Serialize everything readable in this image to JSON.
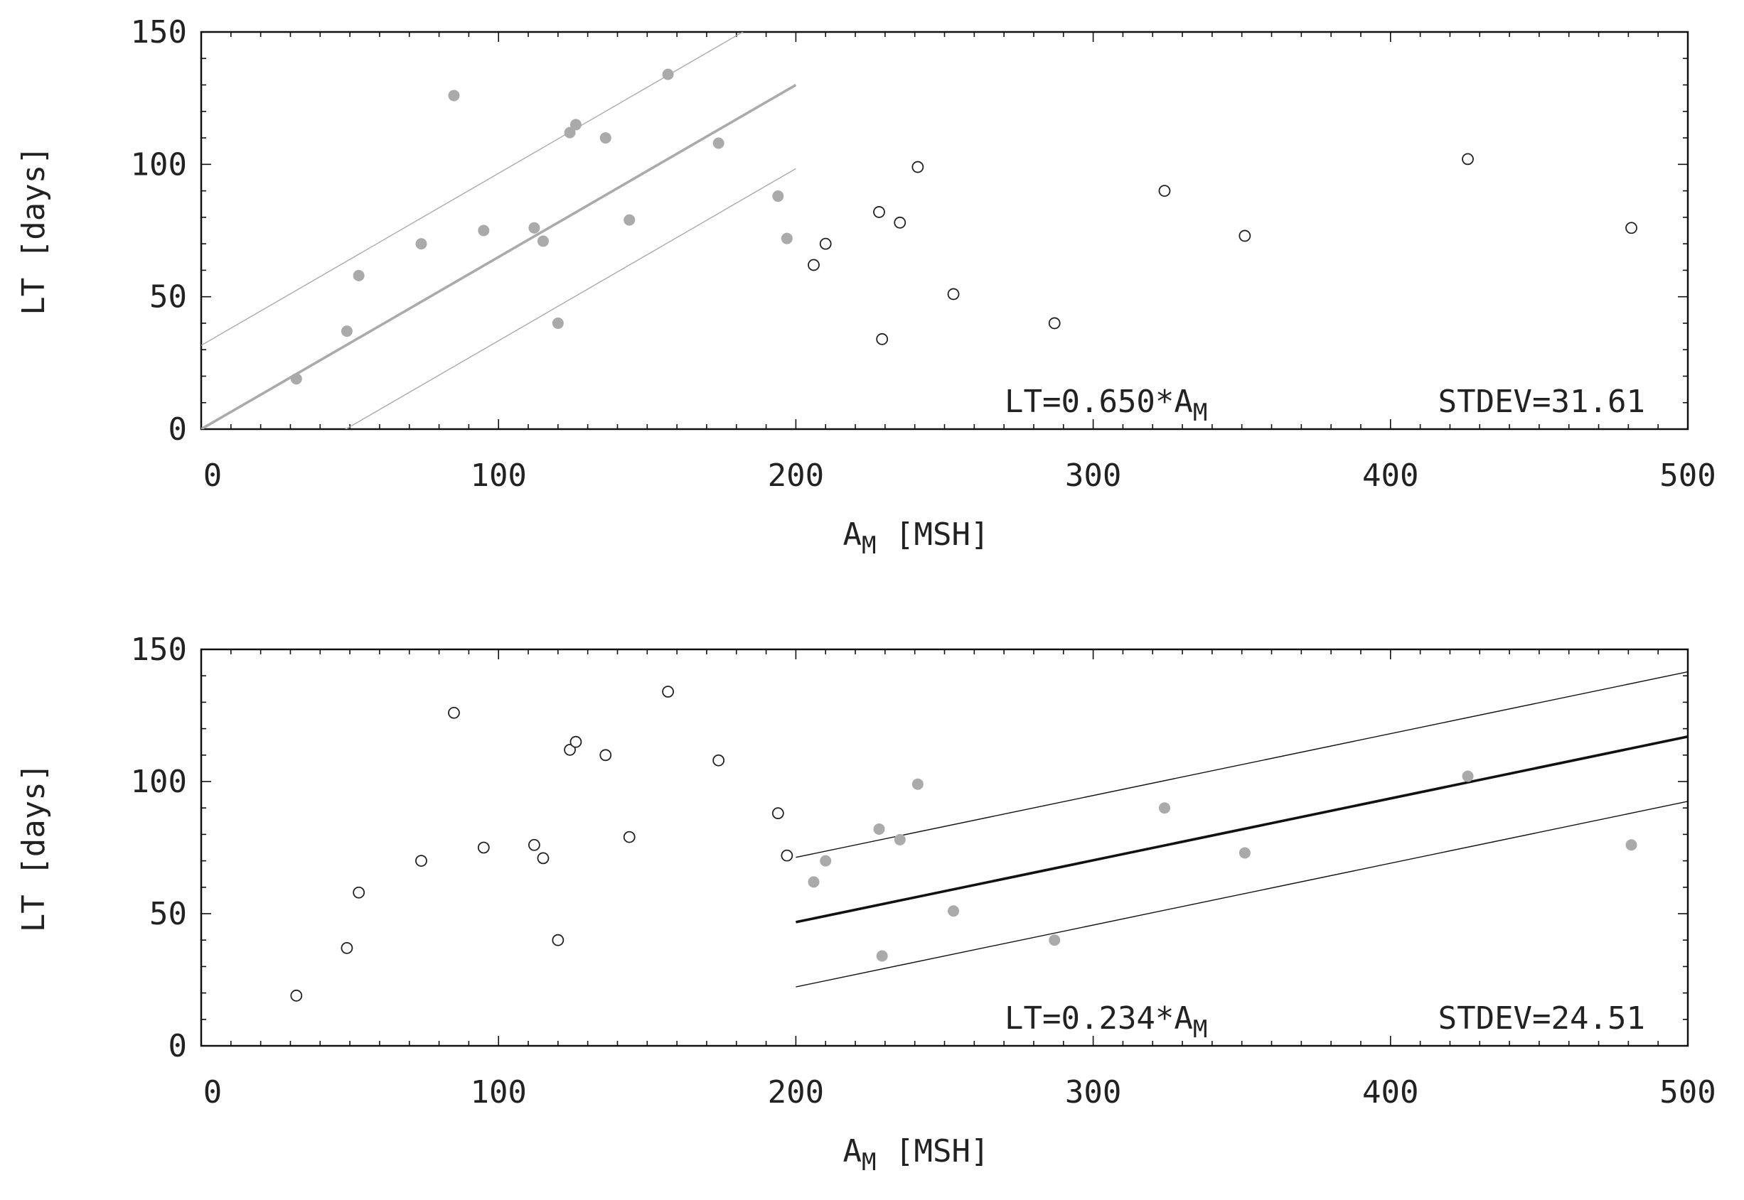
{
  "chart_data": [
    {
      "type": "scatter",
      "xlabel": {
        "base": "A",
        "sub": "M",
        "rest": " [MSH]"
      },
      "ylabel": "LT [days]",
      "xlim": [
        0,
        500
      ],
      "ylim": [
        0,
        150
      ],
      "xticks": [
        0,
        100,
        200,
        300,
        400,
        500
      ],
      "yticks": [
        0,
        50,
        100,
        150
      ],
      "xtick_labels": [
        "0",
        "100",
        "200",
        "300",
        "400",
        "500"
      ],
      "ytick_labels": [
        "0",
        "50",
        "100",
        "150"
      ],
      "annotation_formula": {
        "text": "LT=0.650*A",
        "sub": "M"
      },
      "annotation_stdev": "STDEV=31.61",
      "fit": {
        "slope": 0.65,
        "x_range": [
          0,
          200
        ],
        "band_offset": 31.61,
        "color": "#aaaaaa"
      },
      "fitted_points": {
        "style": "filled",
        "color": "#aaaaaa",
        "x": [
          32,
          49,
          53,
          74,
          85,
          95,
          112,
          115,
          120,
          124,
          126,
          136,
          144,
          157,
          174,
          194,
          197
        ],
        "y": [
          19,
          37,
          58,
          70,
          126,
          75,
          76,
          71,
          40,
          112,
          115,
          110,
          79,
          134,
          108,
          88,
          72
        ]
      },
      "other_points": {
        "style": "open",
        "color": "#222222",
        "x": [
          206,
          210,
          228,
          229,
          235,
          241,
          253,
          287,
          324,
          351,
          426,
          481
        ],
        "y": [
          62,
          70,
          82,
          34,
          78,
          99,
          51,
          40,
          90,
          73,
          102,
          76
        ]
      }
    },
    {
      "type": "scatter",
      "xlabel": {
        "base": "A",
        "sub": "M",
        "rest": " [MSH]"
      },
      "ylabel": "LT [days]",
      "xlim": [
        0,
        500
      ],
      "ylim": [
        0,
        150
      ],
      "xticks": [
        0,
        100,
        200,
        300,
        400,
        500
      ],
      "yticks": [
        0,
        50,
        100,
        150
      ],
      "xtick_labels": [
        "0",
        "100",
        "200",
        "300",
        "400",
        "500"
      ],
      "ytick_labels": [
        "0",
        "50",
        "100",
        "150"
      ],
      "annotation_formula": {
        "text": "LT=0.234*A",
        "sub": "M"
      },
      "annotation_stdev": "STDEV=24.51",
      "fit": {
        "slope": 0.234,
        "x_range": [
          200,
          500
        ],
        "band_offset": 24.51,
        "color": "#111111"
      },
      "fitted_points": {
        "style": "filled",
        "color": "#aaaaaa",
        "x": [
          206,
          210,
          228,
          229,
          235,
          241,
          253,
          287,
          324,
          351,
          426,
          481
        ],
        "y": [
          62,
          70,
          82,
          34,
          78,
          99,
          51,
          40,
          90,
          73,
          102,
          76
        ]
      },
      "other_points": {
        "style": "open",
        "color": "#222222",
        "x": [
          32,
          49,
          53,
          74,
          85,
          95,
          112,
          115,
          120,
          124,
          126,
          136,
          144,
          157,
          174,
          194,
          197
        ],
        "y": [
          19,
          37,
          58,
          70,
          126,
          75,
          76,
          71,
          40,
          112,
          115,
          110,
          79,
          134,
          108,
          88,
          72
        ]
      }
    }
  ]
}
